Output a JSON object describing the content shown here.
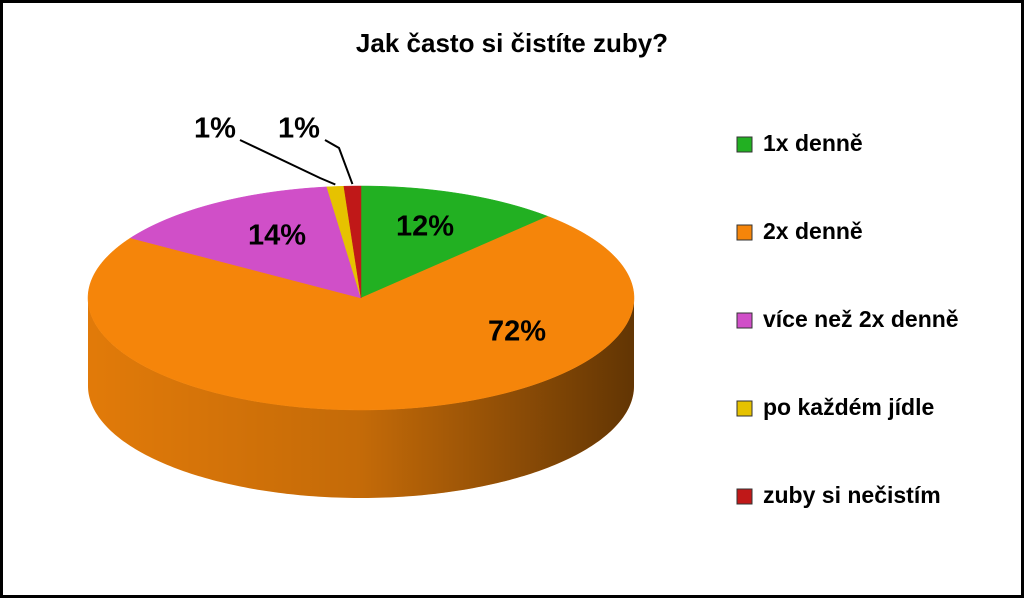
{
  "chart_data": {
    "type": "pie",
    "title": "Jak často si čistíte zuby?",
    "categories": [
      "1x denně",
      "2x denně",
      "více než 2x denně",
      "po každém jídle",
      "zuby si nečistím"
    ],
    "values": [
      12,
      72,
      14,
      1,
      1
    ],
    "value_labels": [
      "12%",
      "72%",
      "14%",
      "1%",
      "1%"
    ],
    "colors": [
      "#22b022",
      "#f5850a",
      "#d04fc8",
      "#e6c200",
      "#c01818"
    ],
    "legend": "right"
  }
}
